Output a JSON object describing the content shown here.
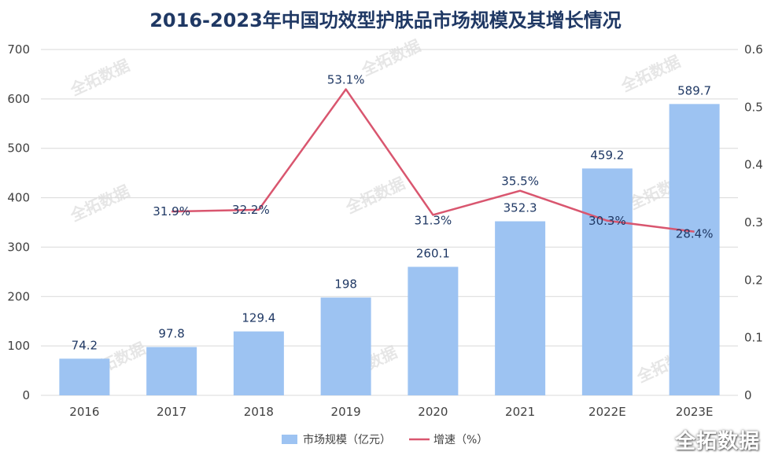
{
  "chart_data": {
    "type": "bar",
    "title": "2016-2023年中国功效型护肤品市场规模及其增长情况",
    "categories": [
      "2016",
      "2017",
      "2018",
      "2019",
      "2020",
      "2021",
      "2022E",
      "2023E"
    ],
    "series": [
      {
        "name": "市场规模（亿元）",
        "kind": "bar",
        "axis": "left",
        "values": [
          74.2,
          97.8,
          129.4,
          198,
          260.1,
          352.3,
          459.2,
          589.7
        ],
        "labels": [
          "74.2",
          "97.8",
          "129.4",
          "198",
          "260.1",
          "352.3",
          "459.2",
          "589.7"
        ],
        "color": "#9dc3f2"
      },
      {
        "name": "增速（%）",
        "kind": "line",
        "axis": "right",
        "values": [
          null,
          0.319,
          0.322,
          0.531,
          0.313,
          0.355,
          0.303,
          0.284
        ],
        "labels": [
          "",
          "31.9%",
          "32.2%",
          "53.1%",
          "31.3%",
          "35.5%",
          "30.3%",
          "28.4%"
        ],
        "color": "#d9566f"
      }
    ],
    "ylim_left": [
      0,
      700
    ],
    "yticks_left": [
      "0",
      "100",
      "200",
      "300",
      "400",
      "500",
      "600",
      "700"
    ],
    "ylim_right": [
      0,
      0.6
    ],
    "yticks_right": [
      "0",
      "0.1",
      "0.2",
      "0.3",
      "0.4",
      "0.5",
      "0.6"
    ],
    "grid": true,
    "legend_position": "bottom-center"
  },
  "watermark": {
    "text": "全拓数据",
    "corner_text": "全拓数据"
  }
}
